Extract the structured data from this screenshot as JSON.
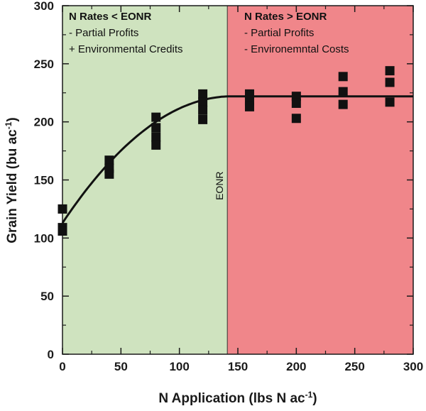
{
  "chart_data": {
    "type": "scatter",
    "title": "",
    "xlabel": "N Application (lbs N ac",
    "xlabel_sup": "-1",
    "xlabel_end": ")",
    "ylabel": "Grain Yield (bu ac",
    "ylabel_sup": "-1",
    "ylabel_end": ")",
    "xlim": [
      0,
      300
    ],
    "ylim": [
      0,
      300
    ],
    "xticks": [
      0,
      50,
      100,
      150,
      200,
      250,
      300
    ],
    "yticks": [
      0,
      50,
      100,
      150,
      200,
      250,
      300
    ],
    "eonr": 141,
    "eonr_label": "EONR",
    "regions": [
      {
        "name": "below-eonr",
        "from": 0,
        "to": 141,
        "color": "#cfe3bf"
      },
      {
        "name": "above-eonr",
        "from": 141,
        "to": 300,
        "color": "#f0868a"
      }
    ],
    "annotations": {
      "left": {
        "title": "N Rates < EONR",
        "lines": [
          "-  Partial Profits",
          "+ Environmental Credits"
        ]
      },
      "right": {
        "title": "N Rates > EONR",
        "lines": [
          "- Partial Profits",
          "- Environemntal Costs"
        ]
      }
    },
    "series": [
      {
        "name": "observed",
        "points": [
          {
            "x": 0,
            "y": 125
          },
          {
            "x": 0,
            "y": 109
          },
          {
            "x": 0,
            "y": 106
          },
          {
            "x": 40,
            "y": 167
          },
          {
            "x": 40,
            "y": 160
          },
          {
            "x": 40,
            "y": 155
          },
          {
            "x": 80,
            "y": 204
          },
          {
            "x": 80,
            "y": 195
          },
          {
            "x": 80,
            "y": 187
          },
          {
            "x": 80,
            "y": 180
          },
          {
            "x": 120,
            "y": 224
          },
          {
            "x": 120,
            "y": 217
          },
          {
            "x": 120,
            "y": 210
          },
          {
            "x": 120,
            "y": 202
          },
          {
            "x": 160,
            "y": 224
          },
          {
            "x": 160,
            "y": 218
          },
          {
            "x": 160,
            "y": 213
          },
          {
            "x": 200,
            "y": 222
          },
          {
            "x": 200,
            "y": 216
          },
          {
            "x": 200,
            "y": 203
          },
          {
            "x": 240,
            "y": 239
          },
          {
            "x": 240,
            "y": 226
          },
          {
            "x": 240,
            "y": 215
          },
          {
            "x": 280,
            "y": 244
          },
          {
            "x": 280,
            "y": 234
          },
          {
            "x": 280,
            "y": 217
          }
        ]
      }
    ],
    "fit": {
      "name": "quadratic-plateau",
      "intercept": 113,
      "plateau": 222,
      "join": 145,
      "x": [
        0,
        20,
        40,
        60,
        80,
        100,
        120,
        145,
        200,
        250,
        300
      ],
      "y": [
        113,
        141,
        165,
        185,
        201,
        212,
        219,
        222,
        222,
        222,
        222
      ]
    },
    "colors": {
      "marker": "#111111",
      "line": "#111111",
      "axis": "#1a1a1a"
    }
  }
}
